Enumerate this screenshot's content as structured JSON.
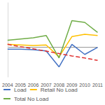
{
  "chart_data": {
    "type": "line",
    "categories": [
      "2004",
      "2005",
      "2006",
      "2007",
      "2008",
      "2009",
      "2010",
      "2011"
    ],
    "series": [
      {
        "name": "Load",
        "color": "#4472c4",
        "values": [
          -0.6,
          -0.6,
          -0.8,
          -1.2,
          -6.6,
          1.0,
          -2.4,
          0.0
        ]
      },
      {
        "name": "Retail No Load",
        "color": "#ffc000",
        "values": [
          1.0,
          0.8,
          0.6,
          0.8,
          -3.2,
          3.6,
          4.4,
          4.0
        ]
      },
      {
        "name": "Total No Load",
        "color": "#70ad47",
        "values": [
          2.4,
          2.8,
          3.2,
          4.0,
          -3.6,
          9.0,
          8.4,
          5.0
        ]
      },
      {
        "color": "#e03030",
        "line_style": "dashed",
        "values": [
          1.0,
          0.2,
          -0.5,
          -1.3,
          -2.1,
          -2.9,
          -3.6,
          -4.4
        ]
      }
    ],
    "ylim": [
      -10,
      15
    ],
    "yticks": [
      0
    ],
    "grid": true,
    "tick_labels": "x",
    "marker": "none",
    "legend": "bottom"
  }
}
